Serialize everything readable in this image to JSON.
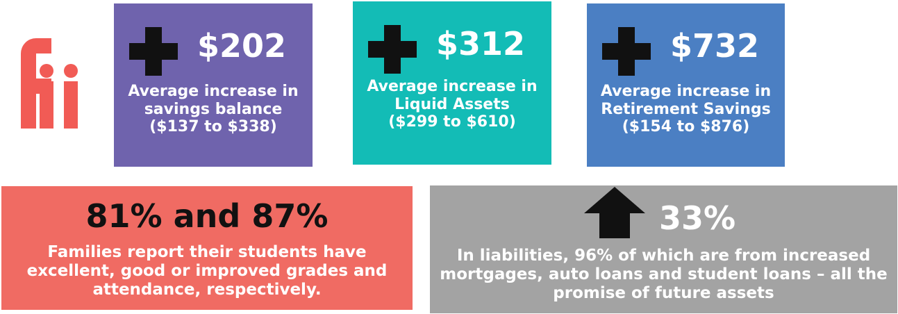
{
  "colors": {
    "logo": "#f15b55",
    "savings_card": "#6f63ad",
    "liquid_card": "#13bcb6",
    "retirement_card": "#4b7fc3",
    "grades_card": "#f06b63",
    "liabilities_card": "#a3a3a3",
    "icon": "#111111"
  },
  "logo": {
    "icon": "fii-logo",
    "text": "Fii"
  },
  "stats": [
    {
      "icon": "plus-icon",
      "value": "$202",
      "desc_lines": [
        "Average increase in",
        "savings balance",
        "($137 to $338)"
      ]
    },
    {
      "icon": "plus-icon",
      "value": "$312",
      "desc_lines": [
        "Average increase in",
        "Liquid Assets",
        "($299 to $610)"
      ]
    },
    {
      "icon": "plus-icon",
      "value": "$732",
      "desc_lines": [
        "Average increase in",
        "Retirement Savings",
        "($154 to $876)"
      ]
    }
  ],
  "grades": {
    "value": "81% and 87%",
    "desc_lines": [
      "Families report their students have",
      "excellent, good or improved grades and",
      "attendance, respectively."
    ]
  },
  "liabilities": {
    "icon": "arrow-up-icon",
    "value": "33%",
    "desc_lines": [
      "In liabilities, 96% of which are from increased",
      "mortgages, auto loans and student loans – all the",
      "promise of future assets"
    ]
  }
}
